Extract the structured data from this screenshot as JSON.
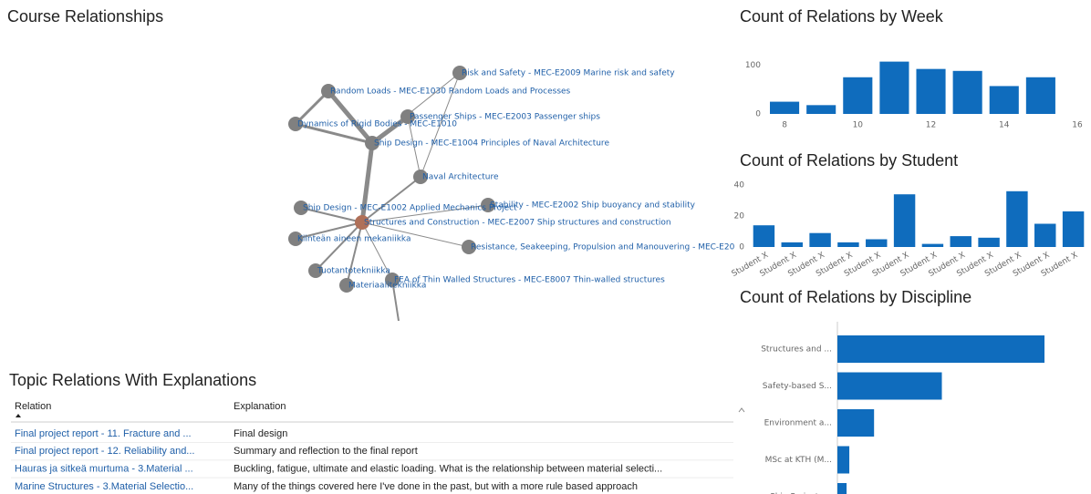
{
  "network": {
    "title": "Course Relationships",
    "nodes": [
      "Risk and Safety - MEC-E2009 Marine risk and safety",
      "Random Loads - MEC-E1030 Random Loads and Processes",
      "Passenger Ships - MEC-E2003 Passenger ships",
      "Dynamics of Rigid Bodies - MEC-E1010",
      "Ship Design - MEC-E1004 Principles of Naval Architecture",
      "Naval Architecture",
      "Ship Design - MEC-E1002 Applied Mechanics Project",
      "Stability - MEC-E2002 Ship buoyancy and stability",
      "Structures and Construction - MEC-E2007 Ship structures and construction",
      "Kiinteän aineen mekaniikka",
      "Resistance, Seakeeping, Propulsion and Manouvering - MEC-E20",
      "Tuotantotekniikka",
      "FEA of Thin Walled Structures - MEC-E8007 Thin-walled structures",
      "Materiaalitekniikka"
    ]
  },
  "chart_data": [
    {
      "type": "bar",
      "title": "Count of Relations by Week",
      "color": "#0f6cbd",
      "x": [
        8,
        9,
        10,
        11,
        12,
        13,
        14,
        15
      ],
      "values": [
        25,
        18,
        75,
        107,
        92,
        88,
        57,
        75
      ],
      "xlim": [
        7.5,
        16
      ],
      "xticks": [
        8,
        10,
        12,
        14,
        16
      ],
      "ylim": [
        0,
        110
      ],
      "yticks": [
        0,
        100
      ],
      "grid": false
    },
    {
      "type": "bar",
      "title": "Count of Relations by Student",
      "color": "#0f6cbd",
      "categories": [
        "Student X",
        "Student X",
        "Student X",
        "Student X",
        "Student X",
        "Student X",
        "Student X",
        "Student X",
        "Student X",
        "Student X",
        "Student X",
        "Student X"
      ],
      "values": [
        14,
        3,
        9,
        3,
        5,
        34,
        2,
        7,
        6,
        36,
        15,
        23
      ],
      "ylim": [
        0,
        40
      ],
      "yticks": [
        0,
        20,
        40
      ],
      "grid": false
    },
    {
      "type": "bar",
      "orientation": "horizontal",
      "title": "Count of Relations by Discipline",
      "color": "#0f6cbd",
      "categories": [
        "Structures and ...",
        "Safety-based S...",
        "Environment a...",
        "MSc at KTH (M...",
        "Ship Project -..."
      ],
      "values": [
        226,
        114,
        40,
        13,
        10
      ]
    }
  ],
  "table": {
    "title": "Topic Relations With Explanations",
    "headers": [
      "Relation",
      "Explanation"
    ],
    "rows": [
      [
        "Final project report - 11. Fracture and ...",
        "Final design"
      ],
      [
        "Final project report - 12. Reliability and...",
        "Summary and reflection to the final report"
      ],
      [
        "Hauras ja sitkeä murtuma - 3.Material ...",
        "Buckling, fatigue, ultimate and elastic loading. What is the relationship between material selecti..."
      ],
      [
        "Marine Structures - 3.Material Selectio...",
        "Many of the things covered here I've done in the past, but with a more rule based approach"
      ]
    ]
  }
}
